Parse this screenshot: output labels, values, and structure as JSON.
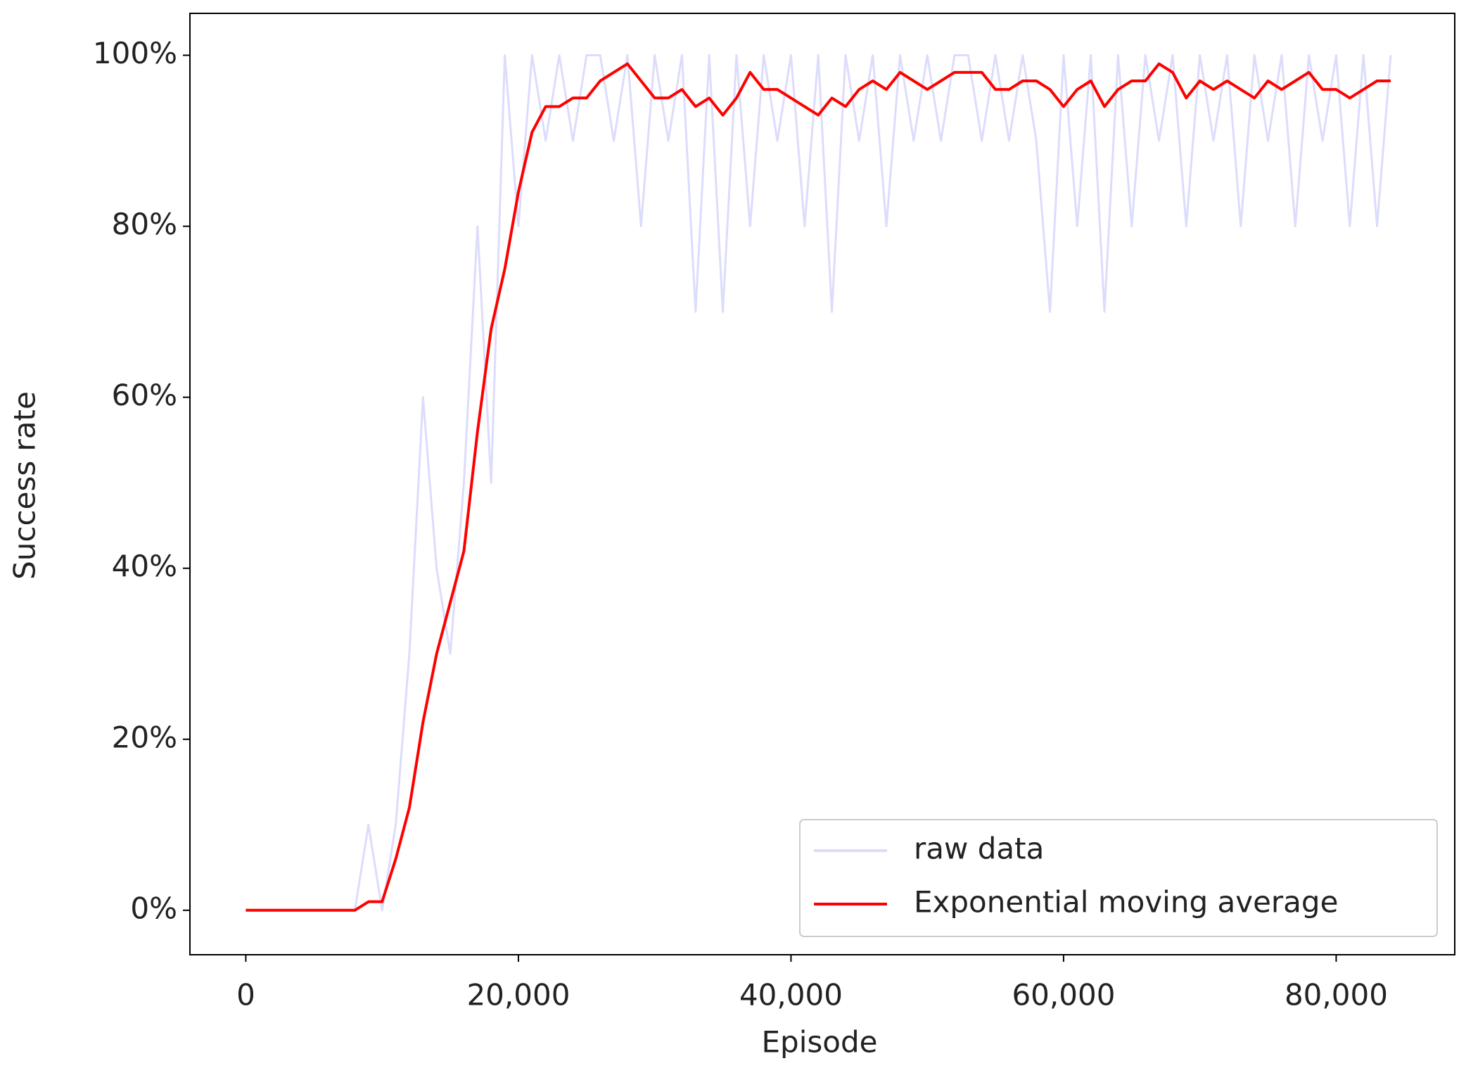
{
  "chart_data": {
    "type": "line",
    "xlabel": "Episode",
    "ylabel": "Success rate",
    "x": [
      0,
      1000,
      2000,
      3000,
      4000,
      5000,
      6000,
      7000,
      8000,
      9000,
      10000,
      11000,
      12000,
      13000,
      14000,
      15000,
      16000,
      17000,
      18000,
      19000,
      20000,
      21000,
      22000,
      23000,
      24000,
      25000,
      26000,
      27000,
      28000,
      29000,
      30000,
      31000,
      32000,
      33000,
      34000,
      35000,
      36000,
      37000,
      38000,
      39000,
      40000,
      41000,
      42000,
      43000,
      44000,
      45000,
      46000,
      47000,
      48000,
      49000,
      50000,
      51000,
      52000,
      53000,
      54000,
      55000,
      56000,
      57000,
      58000,
      59000,
      60000,
      61000,
      62000,
      63000,
      64000,
      65000,
      66000,
      67000,
      68000,
      69000,
      70000,
      71000,
      72000,
      73000,
      74000,
      75000,
      76000,
      77000,
      78000,
      79000,
      80000,
      81000,
      82000,
      83000,
      84000
    ],
    "series": [
      {
        "name": "raw data",
        "color": "#dcdcfc",
        "values": [
          0,
          0,
          0,
          0,
          0,
          0,
          0,
          0,
          0,
          10,
          0,
          10,
          30,
          60,
          40,
          30,
          50,
          80,
          50,
          100,
          80,
          100,
          90,
          100,
          90,
          100,
          100,
          90,
          100,
          80,
          100,
          90,
          100,
          70,
          100,
          70,
          100,
          80,
          100,
          90,
          100,
          80,
          100,
          70,
          100,
          90,
          100,
          80,
          100,
          90,
          100,
          90,
          100,
          100,
          90,
          100,
          90,
          100,
          90,
          70,
          100,
          80,
          100,
          70,
          100,
          80,
          100,
          90,
          100,
          80,
          100,
          90,
          100,
          80,
          100,
          90,
          100,
          80,
          100,
          90,
          100,
          80,
          100,
          80,
          100
        ]
      },
      {
        "name": "Exponential moving average",
        "color": "#ff0000",
        "values": [
          0,
          0,
          0,
          0,
          0,
          0,
          0,
          0,
          0,
          1,
          1,
          6,
          12,
          22,
          30,
          36,
          42,
          56,
          68,
          75,
          84,
          91,
          94,
          94,
          95,
          95,
          97,
          98,
          99,
          97,
          95,
          95,
          96,
          94,
          95,
          93,
          95,
          98,
          96,
          96,
          95,
          94,
          93,
          95,
          94,
          96,
          97,
          96,
          98,
          97,
          96,
          97,
          98,
          98,
          98,
          96,
          96,
          97,
          97,
          96,
          94,
          96,
          97,
          94,
          96,
          97,
          97,
          99,
          98,
          95,
          97,
          96,
          97,
          96,
          95,
          97,
          96,
          97,
          98,
          96,
          96,
          95,
          96,
          97,
          97
        ]
      }
    ],
    "xlim": [
      -4100,
      88700
    ],
    "ylim": [
      -5.2,
      104.9
    ],
    "xticks": [
      0,
      {
        "value": 20000,
        "label": "20,000"
      },
      {
        "value": 40000,
        "label": "40,000"
      },
      {
        "value": 60000,
        "label": "60,000"
      },
      {
        "value": 80000,
        "label": "80,000"
      }
    ],
    "yticks": [
      {
        "value": 0,
        "label": "0%"
      },
      {
        "value": 20,
        "label": "20%"
      },
      {
        "value": 40,
        "label": "40%"
      },
      {
        "value": 60,
        "label": "60%"
      },
      {
        "value": 80,
        "label": "80%"
      },
      {
        "value": 100,
        "label": "100%"
      }
    ],
    "grid": false,
    "legend": "lower right"
  }
}
